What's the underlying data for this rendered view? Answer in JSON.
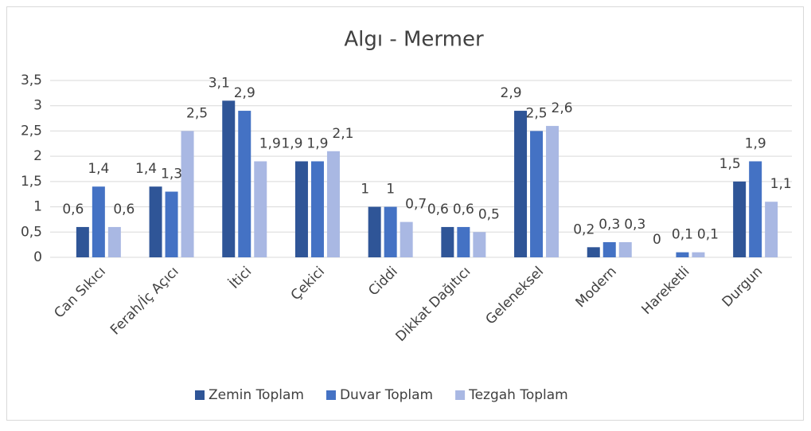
{
  "chart_data": {
    "type": "bar",
    "title": "Algı - Mermer",
    "categories": [
      "Can Sıkıcı",
      "Ferah/İç Açıcı",
      "İtici",
      "Çekici",
      "Ciddi",
      "Dikkat Dağıtıcı",
      "Geleneksel",
      "Modern",
      "Hareketli",
      "Durgun"
    ],
    "series": [
      {
        "name": "Zemin Toplam",
        "color": "#2f5597",
        "values": [
          0.6,
          1.4,
          3.1,
          1.9,
          1,
          0.6,
          2.9,
          0.2,
          0,
          1.5
        ],
        "value_labels": [
          "0,6",
          "1,4",
          "3,1",
          "1,9",
          "1",
          "0,6",
          "2,9",
          "0,2",
          "0",
          "1,5"
        ]
      },
      {
        "name": "Duvar Toplam",
        "color": "#4472c4",
        "values": [
          1.4,
          1.3,
          2.9,
          1.9,
          1,
          0.6,
          2.5,
          0.3,
          0.1,
          1.9
        ],
        "value_labels": [
          "1,4",
          "1,3",
          "2,9",
          "1,9",
          "1",
          "0,6",
          "2,5",
          "0,3",
          "0,1",
          "1,9"
        ]
      },
      {
        "name": "Tezgah Toplam",
        "color": "#a9b8e3",
        "values": [
          0.6,
          2.5,
          1.9,
          2.1,
          0.7,
          0.5,
          2.6,
          0.3,
          0.1,
          1.1
        ],
        "value_labels": [
          "0,6",
          "2,5",
          "1,9",
          "2,1",
          "0,7",
          "0,5",
          "2,6",
          "0,3",
          "0,1",
          "1,1"
        ]
      }
    ],
    "ylim": [
      0,
      3.5
    ],
    "yticks": [
      0,
      {
        "value": 0.5,
        "label": "0,5"
      },
      1,
      {
        "value": 1.5,
        "label": "1,5"
      },
      2,
      {
        "value": 2.5,
        "label": "2,5"
      },
      3,
      {
        "value": 3.5,
        "label": "3,5"
      }
    ],
    "grid": true,
    "legend": "bottom"
  }
}
